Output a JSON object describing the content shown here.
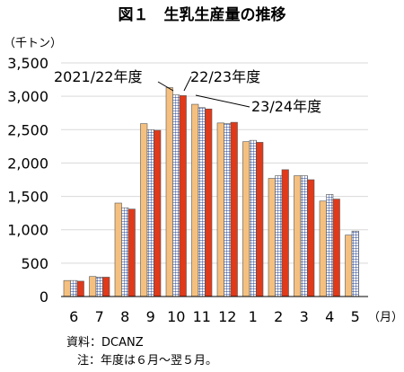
{
  "title": "図１　生乳生産量の推移",
  "unit_label": "（千トン）",
  "month_unit": "（月）",
  "source_line": "資料：DCANZ",
  "note_line": "注：年度は６月～翌５月。",
  "colors": {
    "s2021": "#f5c07f",
    "s2022_bg": "#ffffff",
    "s2022_grid": "#1f3f8f",
    "s2023": "#e03a1a"
  },
  "chart_data": {
    "type": "bar",
    "categories": [
      "6",
      "7",
      "8",
      "9",
      "10",
      "11",
      "12",
      "1",
      "2",
      "3",
      "4",
      "5"
    ],
    "ylim": [
      0,
      3500
    ],
    "yticks": [
      "0",
      "500",
      "1,000",
      "1,500",
      "2,000",
      "2,500",
      "3,000",
      "3,500"
    ],
    "ytick_values": [
      0,
      500,
      1000,
      1500,
      2000,
      2500,
      3000,
      3500
    ],
    "grid": true,
    "series": [
      {
        "name": "2021/22年度",
        "values": [
          240,
          300,
          1400,
          2590,
          3130,
          2880,
          2600,
          2320,
          1770,
          1810,
          1430,
          920
        ]
      },
      {
        "name": "22/23年度",
        "values": [
          240,
          290,
          1330,
          2500,
          3020,
          2830,
          2590,
          2340,
          1810,
          1810,
          1530,
          980
        ]
      },
      {
        "name": "23/24年度",
        "values": [
          230,
          290,
          1310,
          2490,
          3010,
          2810,
          2610,
          2310,
          1900,
          1750,
          1460,
          null
        ]
      }
    ]
  }
}
